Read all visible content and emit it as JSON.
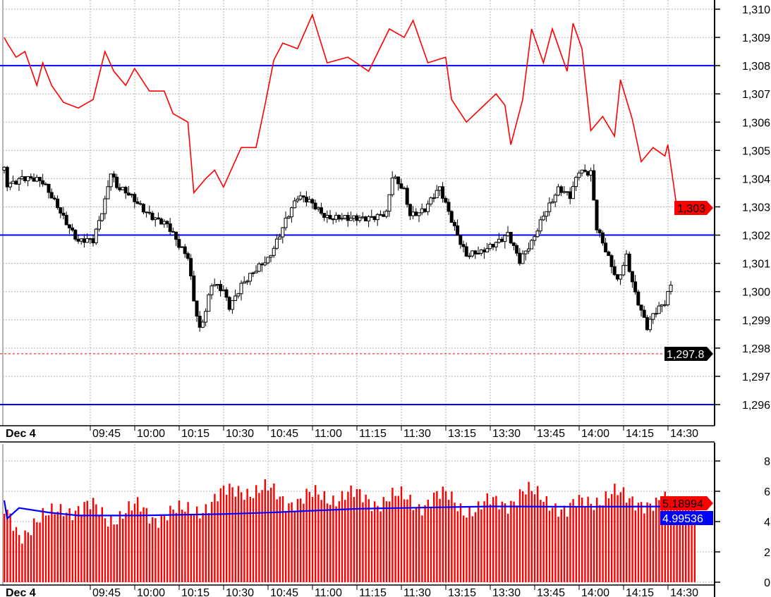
{
  "chart_data": [
    {
      "type": "candlestick",
      "panel": "price",
      "ylim": [
        1295.6,
        1310.3
      ],
      "yticks": [
        "1,296",
        "1,297",
        "1,298",
        "1,299",
        "1,300",
        "1,301",
        "1,302",
        "1,303",
        "1,304",
        "1,305",
        "1,306",
        "1,307",
        "1,308",
        "1,309",
        "1,310"
      ],
      "ytick_values": [
        1296,
        1297,
        1298,
        1299,
        1300,
        1301,
        1302,
        1303,
        1304,
        1305,
        1306,
        1307,
        1308,
        1309,
        1310
      ],
      "date_label": "Dec 4",
      "xticks": [
        "09:45",
        "10:00",
        "10:15",
        "10:30",
        "10:45",
        "11:00",
        "11:15",
        "11:30",
        "13:15",
        "13:30",
        "13:45",
        "14:00",
        "14:15",
        "14:30"
      ],
      "sessions": [
        [
          "09:15",
          "11:45"
        ],
        [
          "13:15",
          "14:40"
        ]
      ],
      "grid": true,
      "candle_close_path": [
        [
          "09:15",
          1304.3
        ],
        [
          "09:16",
          1303.8
        ],
        [
          "09:21",
          1304.1
        ],
        [
          "09:28",
          1303.8
        ],
        [
          "09:33",
          1303.1
        ],
        [
          "09:38",
          1302.1
        ],
        [
          "09:40",
          1301.7
        ],
        [
          "09:45",
          1301.8
        ],
        [
          "09:49",
          1303.3
        ],
        [
          "09:51",
          1304.3
        ],
        [
          "09:53",
          1303.7
        ],
        [
          "09:59",
          1303.2
        ],
        [
          "10:04",
          1302.8
        ],
        [
          "10:10",
          1302.3
        ],
        [
          "10:14",
          1301.6
        ],
        [
          "10:17",
          1301.3
        ],
        [
          "10:19",
          1299.8
        ],
        [
          "10:21",
          1298.7
        ],
        [
          "10:23",
          1299.3
        ],
        [
          "10:25",
          1300.2
        ],
        [
          "10:29",
          1300.0
        ],
        [
          "10:31",
          1299.5
        ],
        [
          "10:35",
          1300.3
        ],
        [
          "10:40",
          1300.7
        ],
        [
          "10:44",
          1301.1
        ],
        [
          "10:48",
          1302.1
        ],
        [
          "10:50",
          1302.6
        ],
        [
          "10:54",
          1303.3
        ],
        [
          "10:59",
          1303.1
        ],
        [
          "11:04",
          1302.7
        ],
        [
          "11:11",
          1302.5
        ],
        [
          "11:18",
          1302.7
        ],
        [
          "11:24",
          1302.7
        ],
        [
          "11:26",
          1304.0
        ],
        [
          "11:30",
          1303.6
        ],
        [
          "11:32",
          1302.8
        ],
        [
          "11:37",
          1302.9
        ],
        [
          "11:42",
          1303.6
        ],
        [
          "13:16",
          1302.6
        ],
        [
          "13:21",
          1301.3
        ],
        [
          "13:26",
          1301.3
        ],
        [
          "13:31",
          1301.8
        ],
        [
          "13:35",
          1302.1
        ],
        [
          "13:39",
          1301.0
        ],
        [
          "13:43",
          1301.7
        ],
        [
          "13:47",
          1302.8
        ],
        [
          "13:52",
          1303.6
        ],
        [
          "13:56",
          1303.3
        ],
        [
          "13:59",
          1304.3
        ],
        [
          "14:03",
          1304.3
        ],
        [
          "14:05",
          1302.3
        ],
        [
          "14:09",
          1301.1
        ],
        [
          "14:12",
          1300.3
        ],
        [
          "14:15",
          1301.3
        ],
        [
          "14:18",
          1300.0
        ],
        [
          "14:22",
          1298.7
        ],
        [
          "14:24",
          1299.1
        ],
        [
          "14:28",
          1299.6
        ],
        [
          "14:30",
          1300.3
        ]
      ],
      "red_line": [
        [
          "09:15",
          1309.0
        ],
        [
          "09:16",
          1308.8
        ],
        [
          "09:19",
          1308.3
        ],
        [
          "09:22",
          1308.5
        ],
        [
          "09:26",
          1307.3
        ],
        [
          "09:28",
          1308.1
        ],
        [
          "09:31",
          1307.3
        ],
        [
          "09:35",
          1306.7
        ],
        [
          "09:40",
          1306.5
        ],
        [
          "09:45",
          1306.8
        ],
        [
          "09:49",
          1308.5
        ],
        [
          "09:52",
          1307.8
        ],
        [
          "09:56",
          1307.3
        ],
        [
          "09:59",
          1307.9
        ],
        [
          "10:04",
          1307.1
        ],
        [
          "10:09",
          1307.1
        ],
        [
          "10:12",
          1306.3
        ],
        [
          "10:17",
          1306.0
        ],
        [
          "10:19",
          1303.5
        ],
        [
          "10:23",
          1304.0
        ],
        [
          "10:26",
          1304.3
        ],
        [
          "10:29",
          1303.7
        ],
        [
          "10:35",
          1305.1
        ],
        [
          "10:40",
          1305.1
        ],
        [
          "10:43",
          1306.6
        ],
        [
          "10:46",
          1308.2
        ],
        [
          "10:49",
          1308.8
        ],
        [
          "10:54",
          1308.6
        ],
        [
          "10:59",
          1309.8
        ],
        [
          "11:04",
          1308.1
        ],
        [
          "11:11",
          1308.3
        ],
        [
          "11:18",
          1307.8
        ],
        [
          "11:25",
          1309.3
        ],
        [
          "11:30",
          1309.0
        ],
        [
          "11:33",
          1309.6
        ],
        [
          "11:38",
          1308.1
        ],
        [
          "11:44",
          1308.3
        ],
        [
          "13:16",
          1306.8
        ],
        [
          "13:21",
          1306.0
        ],
        [
          "13:26",
          1306.5
        ],
        [
          "13:31",
          1307.0
        ],
        [
          "13:34",
          1306.6
        ],
        [
          "13:36",
          1305.2
        ],
        [
          "13:40",
          1306.8
        ],
        [
          "13:43",
          1309.3
        ],
        [
          "13:47",
          1308.1
        ],
        [
          "13:50",
          1309.3
        ],
        [
          "13:55",
          1307.8
        ],
        [
          "13:57",
          1309.5
        ],
        [
          "14:00",
          1308.6
        ],
        [
          "14:03",
          1305.7
        ],
        [
          "14:07",
          1306.2
        ],
        [
          "14:11",
          1305.5
        ],
        [
          "14:13",
          1307.5
        ],
        [
          "14:17",
          1306.1
        ],
        [
          "14:20",
          1304.6
        ],
        [
          "14:24",
          1305.1
        ],
        [
          "14:28",
          1304.8
        ],
        [
          "14:29",
          1305.2
        ],
        [
          "14:32",
          1303.0
        ],
        [
          "14:38",
          1303.0
        ]
      ],
      "horizontal_lines": [
        1308,
        1302,
        1296
      ],
      "last_price_line": 1297.8,
      "labels": {
        "red_last": "1,303",
        "last_price": "1,297.8"
      },
      "colors": {
        "red_line": "#ff0000",
        "hlines": "#0000ff",
        "candles": "#000000",
        "last_red_bg": "#ff0000",
        "last_price_bg": "#000000"
      }
    },
    {
      "type": "bar",
      "panel": "volume",
      "ylim": [
        0,
        9
      ],
      "yticks": [
        "0",
        "2",
        "4",
        "6",
        "8"
      ],
      "ytick_values": [
        0,
        2,
        4,
        6,
        8
      ],
      "date_label": "Dec 4",
      "xticks": [
        "09:45",
        "10:00",
        "10:15",
        "10:30",
        "10:45",
        "11:00",
        "11:15",
        "11:30",
        "13:15",
        "13:30",
        "13:45",
        "14:00",
        "14:15",
        "14:30"
      ],
      "volume_every_5_bars": [
        4.5,
        3.2,
        4.0,
        4.2,
        5.0,
        4.9,
        4.8,
        4.3,
        4.6,
        4.8,
        4.4,
        4.6,
        4.5,
        4.9,
        5.3,
        5.8,
        6.3,
        6.0,
        5.9,
        5.5,
        5.4,
        5.6,
        5.7,
        5.8,
        5.5,
        5.4,
        5.6,
        5.4,
        5.2,
        5.6,
        5.5,
        5.0,
        4.8,
        5.2,
        5.4,
        5.9,
        5.6,
        5.4,
        4.6,
        5.2,
        5.6,
        5.8,
        5.4,
        5.5,
        5.0,
        5.2
      ],
      "moving_average": [
        [
          "09:15",
          5.4
        ],
        [
          "09:16",
          4.2
        ],
        [
          "09:20",
          4.9
        ],
        [
          "09:30",
          4.6
        ],
        [
          "09:40",
          4.4
        ],
        [
          "10:00",
          4.4
        ],
        [
          "10:30",
          4.5
        ],
        [
          "10:45",
          4.6
        ],
        [
          "11:15",
          4.85
        ],
        [
          "11:44",
          4.95
        ],
        [
          "13:30",
          5.0
        ],
        [
          "14:00",
          4.98
        ],
        [
          "14:30",
          4.995
        ]
      ],
      "labels": {
        "volume_last": "5.18994",
        "ma_last": "4.99536"
      },
      "colors": {
        "volume": "#ff0000",
        "ma": "#0000ff"
      }
    }
  ]
}
